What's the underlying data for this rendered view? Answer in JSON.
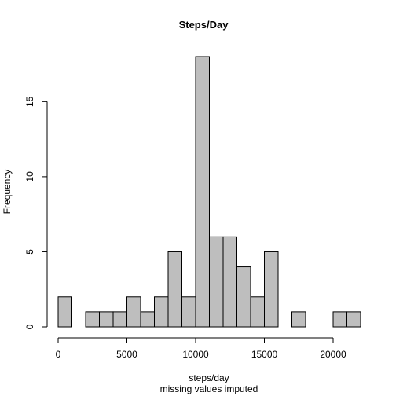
{
  "chart_data": {
    "type": "bar",
    "title": "Steps/Day",
    "xlabel": "steps/day",
    "sub_label": "missing values imputed",
    "ylabel": "Frequency",
    "bin_width": 1000,
    "bins": [
      {
        "start": 0,
        "end": 1000,
        "count": 2
      },
      {
        "start": 1000,
        "end": 2000,
        "count": 0
      },
      {
        "start": 2000,
        "end": 3000,
        "count": 1
      },
      {
        "start": 3000,
        "end": 4000,
        "count": 1
      },
      {
        "start": 4000,
        "end": 5000,
        "count": 1
      },
      {
        "start": 5000,
        "end": 6000,
        "count": 2
      },
      {
        "start": 6000,
        "end": 7000,
        "count": 1
      },
      {
        "start": 7000,
        "end": 8000,
        "count": 2
      },
      {
        "start": 8000,
        "end": 9000,
        "count": 5
      },
      {
        "start": 9000,
        "end": 10000,
        "count": 2
      },
      {
        "start": 10000,
        "end": 11000,
        "count": 18
      },
      {
        "start": 11000,
        "end": 12000,
        "count": 6
      },
      {
        "start": 12000,
        "end": 13000,
        "count": 6
      },
      {
        "start": 13000,
        "end": 14000,
        "count": 4
      },
      {
        "start": 14000,
        "end": 15000,
        "count": 2
      },
      {
        "start": 15000,
        "end": 16000,
        "count": 5
      },
      {
        "start": 16000,
        "end": 17000,
        "count": 0
      },
      {
        "start": 17000,
        "end": 18000,
        "count": 1
      },
      {
        "start": 18000,
        "end": 19000,
        "count": 0
      },
      {
        "start": 19000,
        "end": 20000,
        "count": 0
      },
      {
        "start": 20000,
        "end": 21000,
        "count": 1
      },
      {
        "start": 21000,
        "end": 22000,
        "count": 1
      }
    ],
    "xlim": [
      0,
      22000
    ],
    "ylim": [
      0,
      18
    ],
    "x_ticks": [
      0,
      5000,
      10000,
      15000,
      20000
    ],
    "y_ticks": [
      0,
      5,
      10,
      15
    ],
    "grid": false,
    "bar_color": "#bebebe",
    "edge_color": "#000000"
  }
}
